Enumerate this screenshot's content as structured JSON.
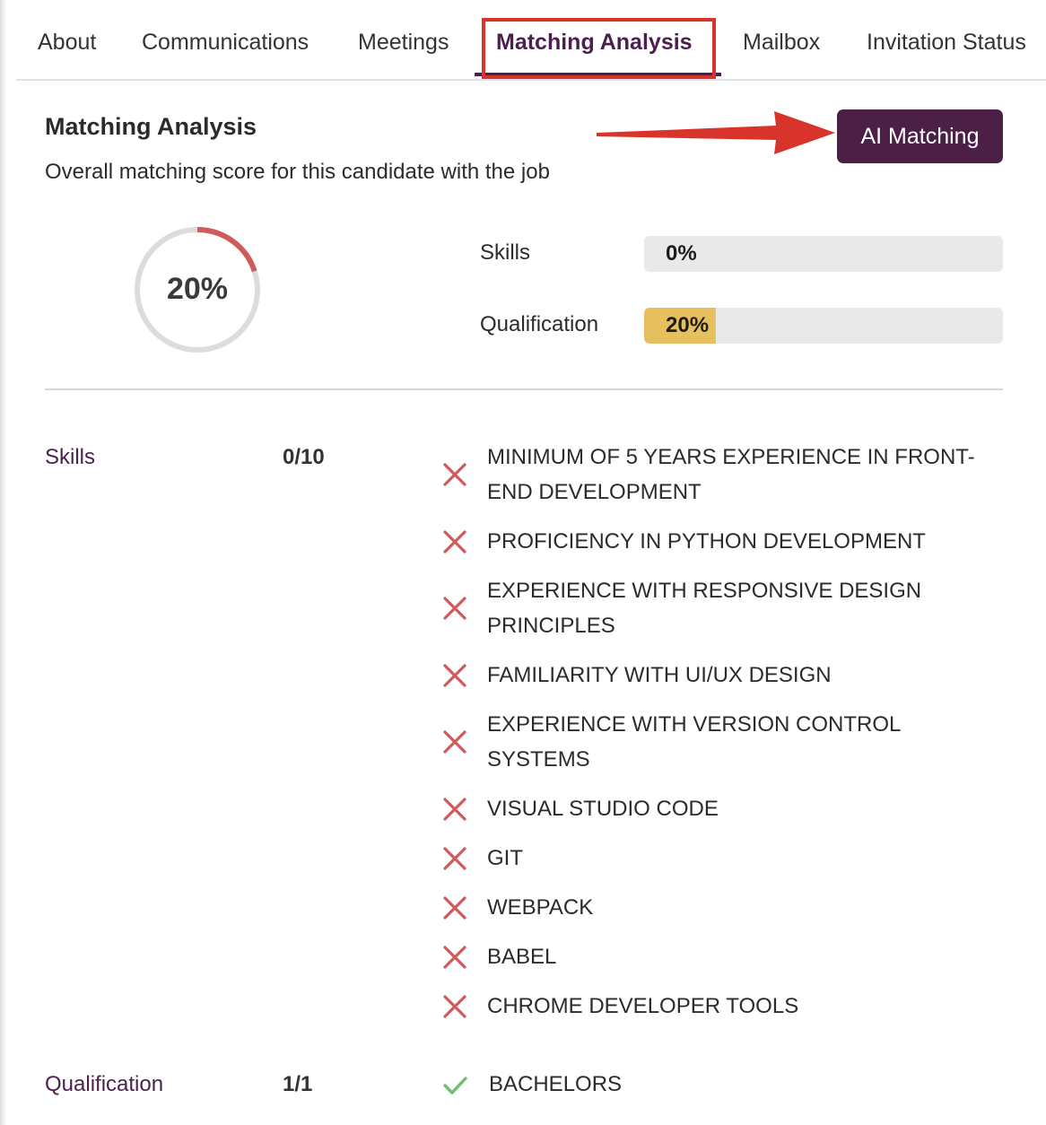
{
  "tabs": [
    {
      "label": "About"
    },
    {
      "label": "Communications"
    },
    {
      "label": "Meetings"
    },
    {
      "label": "Matching Analysis",
      "active": true
    },
    {
      "label": "Mailbox"
    },
    {
      "label": "Invitation Status"
    }
  ],
  "header": {
    "title": "Matching Analysis",
    "subtitle": "Overall matching score for this candidate with the job",
    "ai_button_label": "AI Matching"
  },
  "overall": {
    "score_text": "20%",
    "score_fraction": 0.2,
    "ring_color": "#cf5b5b",
    "track_color": "#dcdcdc"
  },
  "bars": [
    {
      "label": "Skills",
      "value_text": "0%",
      "fraction": 0.0
    },
    {
      "label": "Qualification",
      "value_text": "20%",
      "fraction": 0.2
    }
  ],
  "colors": {
    "accent": "#4b1f46",
    "bar_fill": "#e6c05f",
    "cross": "#d05a5a",
    "check": "#6cc070",
    "annotation_red": "#d9342b"
  },
  "details": {
    "skills": {
      "name": "Skills",
      "score": "0/10",
      "items": [
        {
          "text": "MINIMUM OF 5 YEARS EXPERIENCE IN FRONT-END DEVELOPMENT",
          "icon": "cross-icon"
        },
        {
          "text": "PROFICIENCY IN PYTHON DEVELOPMENT",
          "icon": "cross-icon"
        },
        {
          "text": "EXPERIENCE WITH RESPONSIVE DESIGN PRINCIPLES",
          "icon": "cross-icon"
        },
        {
          "text": "FAMILIARITY WITH UI/UX DESIGN",
          "icon": "cross-icon"
        },
        {
          "text": "EXPERIENCE WITH VERSION CONTROL SYSTEMS",
          "icon": "cross-icon"
        },
        {
          "text": "VISUAL STUDIO CODE",
          "icon": "cross-icon"
        },
        {
          "text": "GIT",
          "icon": "cross-icon"
        },
        {
          "text": "WEBPACK",
          "icon": "cross-icon"
        },
        {
          "text": "BABEL",
          "icon": "cross-icon"
        },
        {
          "text": "CHROME DEVELOPER TOOLS",
          "icon": "cross-icon"
        }
      ]
    },
    "qualification": {
      "name": "Qualification",
      "score": "1/1",
      "items": [
        {
          "text": "BACHELORS",
          "icon": "check-icon"
        }
      ]
    }
  }
}
